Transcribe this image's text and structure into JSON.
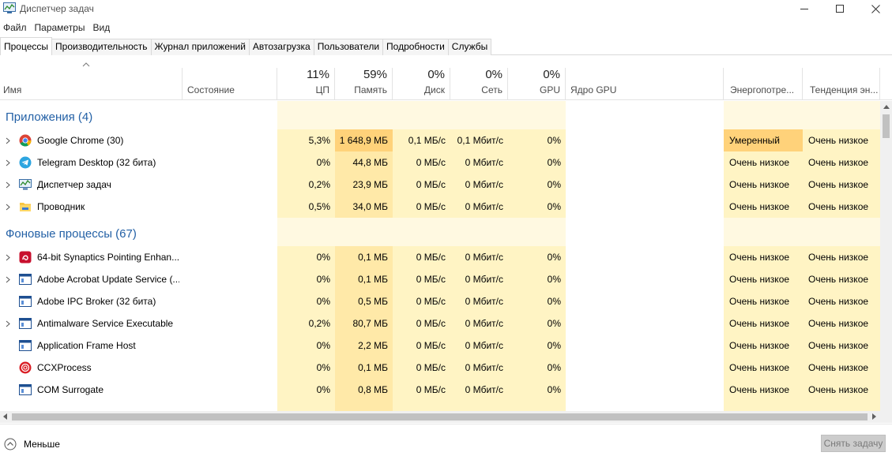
{
  "window": {
    "title": "Диспетчер задач"
  },
  "menu": [
    "Файл",
    "Параметры",
    "Вид"
  ],
  "tabs": [
    "Процессы",
    "Производительность",
    "Журнал приложений",
    "Автозагрузка",
    "Пользователи",
    "Подробности",
    "Службы"
  ],
  "active_tab": "Процессы",
  "columns": {
    "name": "Имя",
    "status": "Состояние",
    "cpu": {
      "percent": "11%",
      "label": "ЦП"
    },
    "memory": {
      "percent": "59%",
      "label": "Память"
    },
    "disk": {
      "percent": "0%",
      "label": "Диск"
    },
    "network": {
      "percent": "0%",
      "label": "Сеть"
    },
    "gpu": {
      "percent": "0%",
      "label": "GPU"
    },
    "gpu_engine": "Ядро GPU",
    "power": "Энергопотре...",
    "power_trend": "Тенденция эн..."
  },
  "groups": [
    {
      "title": "Приложения (4)",
      "rows": [
        {
          "name": "Google Chrome (30)",
          "icon": "chrome-icon",
          "expandable": true,
          "cpu": "5,3%",
          "memory": "1 648,9 МБ",
          "disk": "0,1 МБ/с",
          "network": "0,1 Мбит/с",
          "gpu": "0%",
          "power": "Умеренный",
          "trend": "Очень низкое"
        },
        {
          "name": "Telegram Desktop (32 бита)",
          "icon": "telegram-icon",
          "expandable": true,
          "cpu": "0%",
          "memory": "44,8 МБ",
          "disk": "0 МБ/с",
          "network": "0 Мбит/с",
          "gpu": "0%",
          "power": "Очень низкое",
          "trend": "Очень низкое"
        },
        {
          "name": "Диспетчер задач",
          "icon": "task-manager-icon",
          "expandable": true,
          "cpu": "0,2%",
          "memory": "23,9 МБ",
          "disk": "0 МБ/с",
          "network": "0 Мбит/с",
          "gpu": "0%",
          "power": "Очень низкое",
          "trend": "Очень низкое"
        },
        {
          "name": "Проводник",
          "icon": "explorer-icon",
          "expandable": true,
          "cpu": "0,5%",
          "memory": "34,0 МБ",
          "disk": "0 МБ/с",
          "network": "0 Мбит/с",
          "gpu": "0%",
          "power": "Очень низкое",
          "trend": "Очень низкое"
        }
      ]
    },
    {
      "title": "Фоновые процессы (67)",
      "rows": [
        {
          "name": "64-bit Synaptics Pointing Enhan...",
          "icon": "synaptics-icon",
          "expandable": true,
          "cpu": "0%",
          "memory": "0,1 МБ",
          "disk": "0 МБ/с",
          "network": "0 Мбит/с",
          "gpu": "0%",
          "power": "Очень низкое",
          "trend": "Очень низкое"
        },
        {
          "name": "Adobe Acrobat Update Service (...",
          "icon": "service-window-icon",
          "expandable": true,
          "cpu": "0%",
          "memory": "0,1 МБ",
          "disk": "0 МБ/с",
          "network": "0 Мбит/с",
          "gpu": "0%",
          "power": "Очень низкое",
          "trend": "Очень низкое"
        },
        {
          "name": "Adobe IPC Broker (32 бита)",
          "icon": "service-window-icon",
          "expandable": false,
          "cpu": "0%",
          "memory": "0,5 МБ",
          "disk": "0 МБ/с",
          "network": "0 Мбит/с",
          "gpu": "0%",
          "power": "Очень низкое",
          "trend": "Очень низкое"
        },
        {
          "name": "Antimalware Service Executable",
          "icon": "service-window-icon",
          "expandable": true,
          "cpu": "0,2%",
          "memory": "80,7 МБ",
          "disk": "0 МБ/с",
          "network": "0 Мбит/с",
          "gpu": "0%",
          "power": "Очень низкое",
          "trend": "Очень низкое"
        },
        {
          "name": "Application Frame Host",
          "icon": "service-window-icon",
          "expandable": false,
          "cpu": "0%",
          "memory": "2,2 МБ",
          "disk": "0 МБ/с",
          "network": "0 Мбит/с",
          "gpu": "0%",
          "power": "Очень низкое",
          "trend": "Очень низкое"
        },
        {
          "name": "CCXProcess",
          "icon": "ccx-icon",
          "expandable": false,
          "cpu": "0%",
          "memory": "0,1 МБ",
          "disk": "0 МБ/с",
          "network": "0 Мбит/с",
          "gpu": "0%",
          "power": "Очень низкое",
          "trend": "Очень низкое"
        },
        {
          "name": "COM Surrogate",
          "icon": "service-window-icon",
          "expandable": false,
          "cpu": "0%",
          "memory": "0,8 МБ",
          "disk": "0 МБ/с",
          "network": "0 Мбит/с",
          "gpu": "0%",
          "power": "Очень низкое",
          "trend": "Очень низкое"
        }
      ]
    }
  ],
  "footer": {
    "less_label": "Меньше",
    "end_task_label": "Снять задачу"
  },
  "colors": {
    "group_title": "#2461a6",
    "heat_light": "#fff4c4",
    "heat_medium": "#ffe9a8",
    "heat_high": "#ffd27a"
  }
}
